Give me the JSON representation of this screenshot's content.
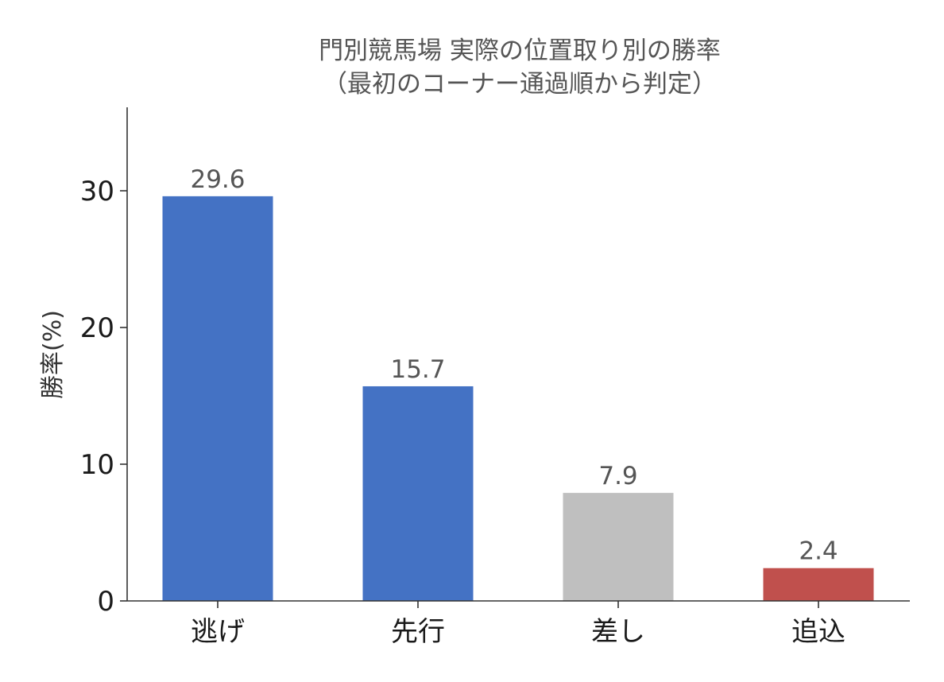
{
  "chart_data": {
    "type": "bar",
    "title": "門別競馬場 実際の位置取り別の勝率",
    "subtitle": "（最初のコーナー通過順から判定）",
    "xlabel": "",
    "ylabel": "勝率(%)",
    "categories": [
      "逃げ",
      "先行",
      "差し",
      "追込"
    ],
    "values": [
      29.6,
      15.7,
      7.9,
      2.4
    ],
    "data_labels": [
      "29.6",
      "15.7",
      "7.9",
      "2.4"
    ],
    "colors": [
      "#4472c4",
      "#4472c4",
      "#bfbfbf",
      "#c0504d"
    ],
    "ylim": [
      0,
      36
    ],
    "yticks": [
      0,
      10,
      20,
      30
    ],
    "ytick_labels": [
      "0",
      "10",
      "20",
      "30"
    ],
    "grid": false,
    "legend": "none"
  }
}
